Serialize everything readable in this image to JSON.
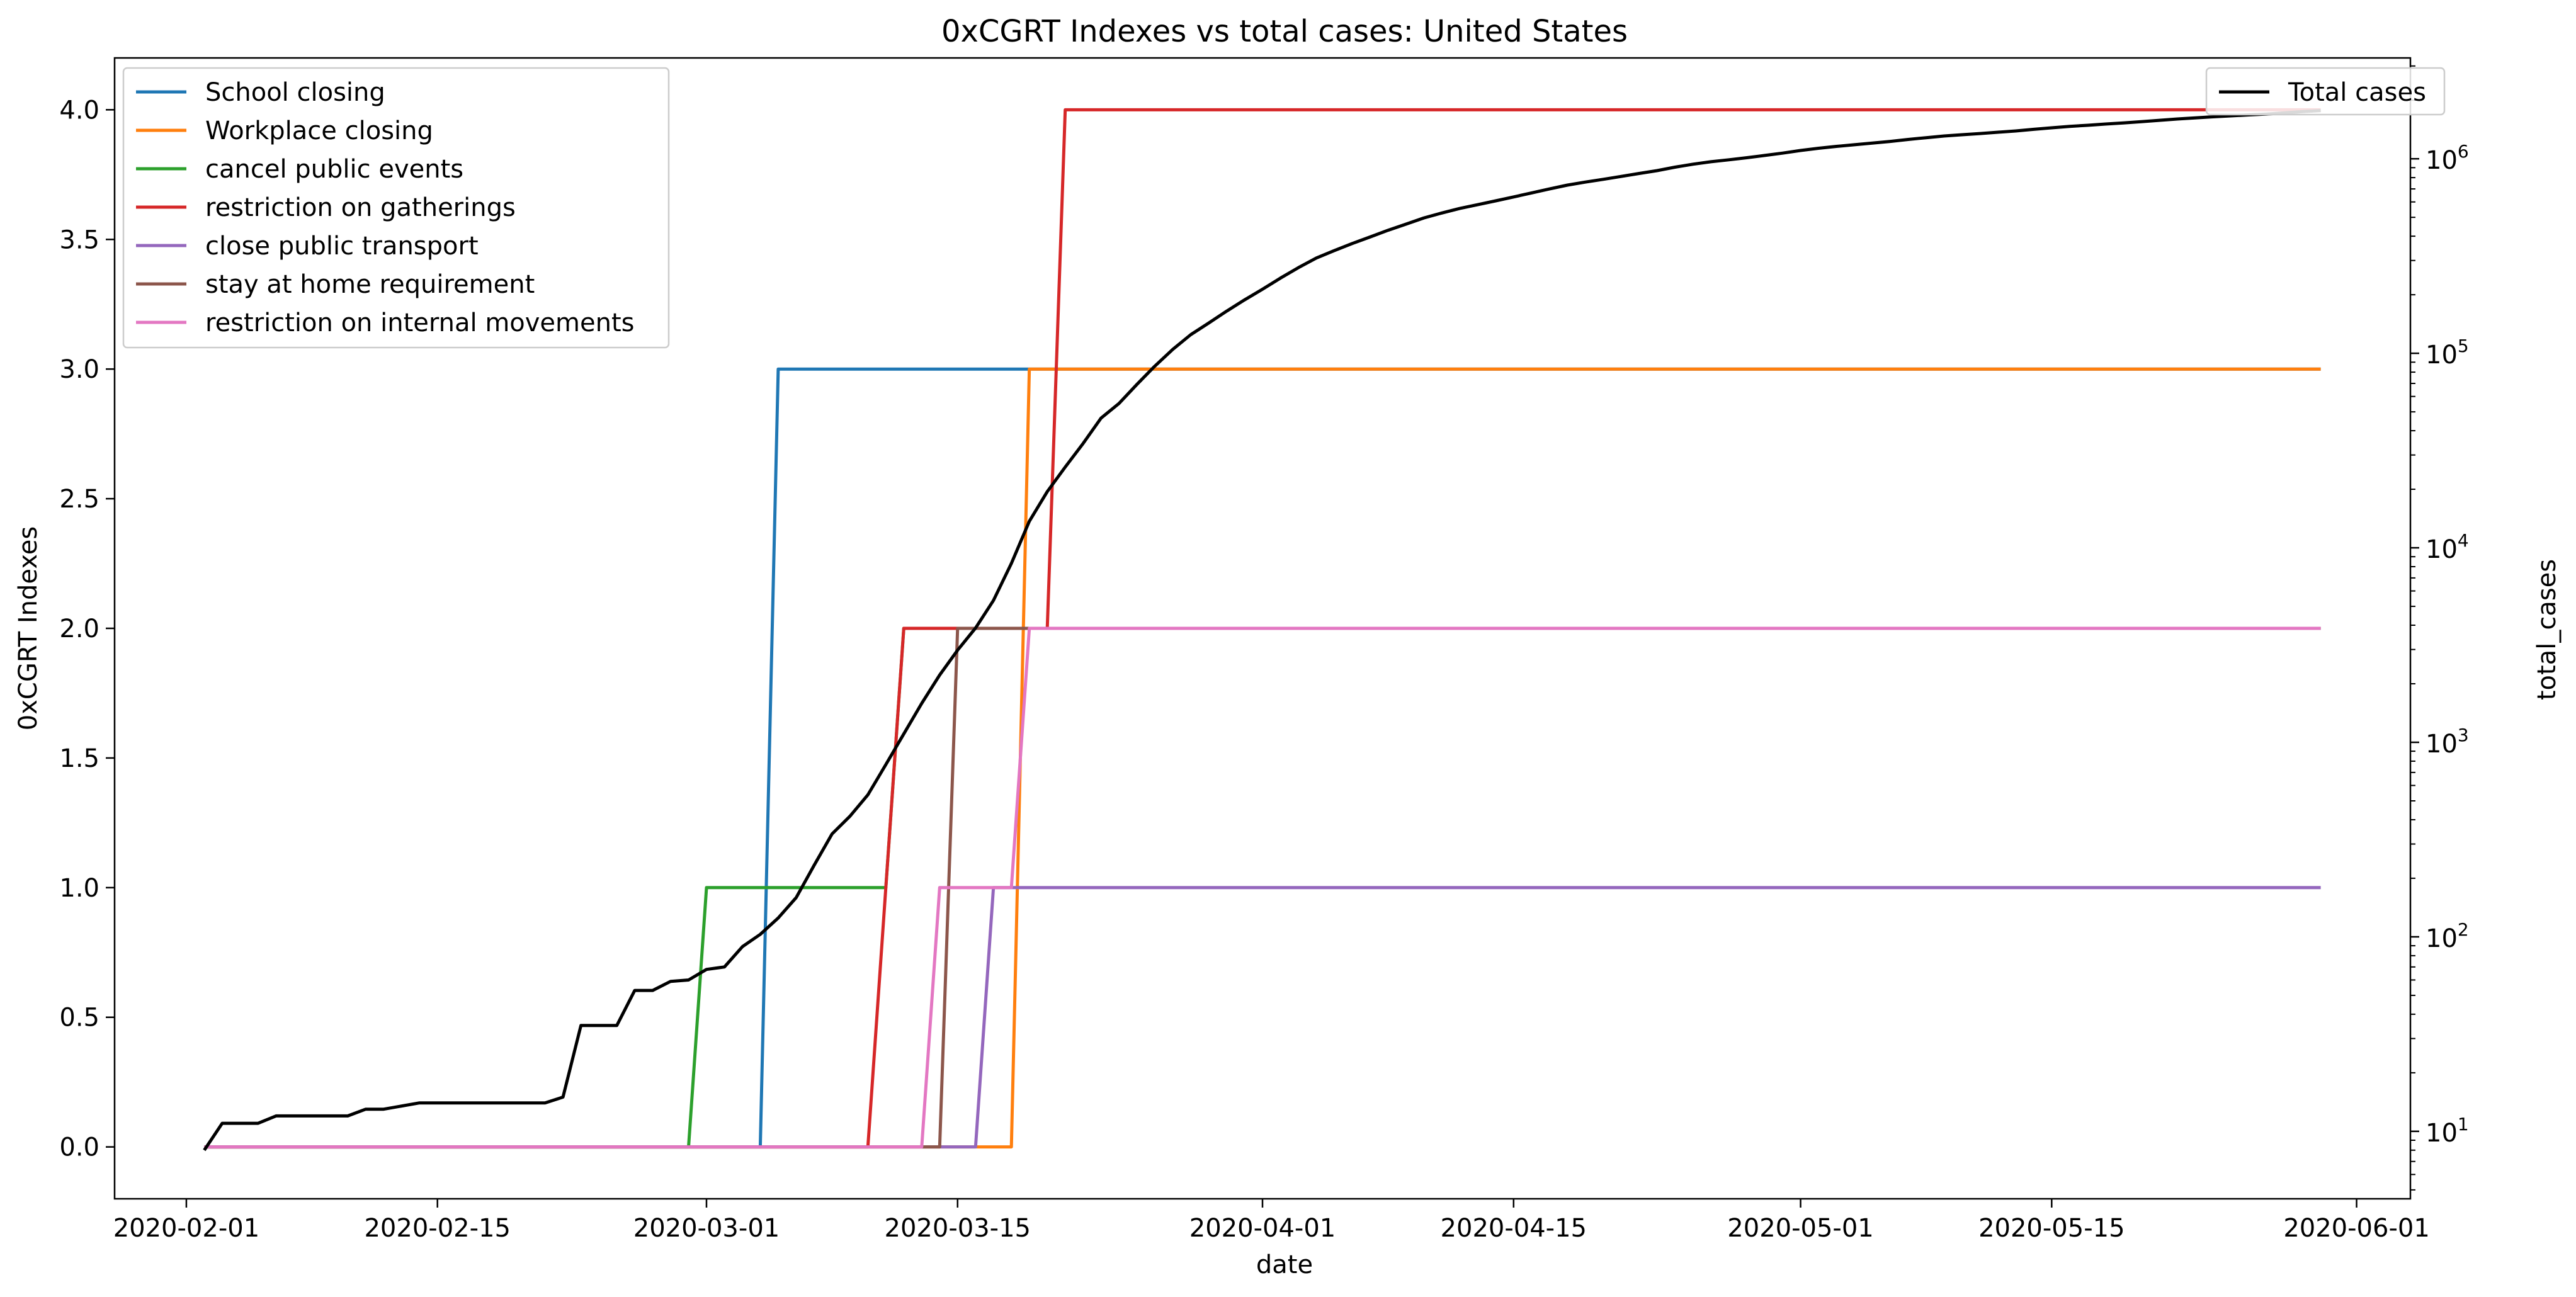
{
  "chart_data": {
    "type": "line",
    "title": "0xCGRT Indexes vs total cases:  United States",
    "xlabel": "date",
    "ylabel_left": "0xCGRT Indexes",
    "ylabel_right": "total_cases",
    "x_ticks": [
      "2020-02-01",
      "2020-02-15",
      "2020-03-01",
      "2020-03-15",
      "2020-04-01",
      "2020-04-15",
      "2020-05-01",
      "2020-05-15",
      "2020-06-01"
    ],
    "y_left_ticks": [
      "0.0",
      "0.5",
      "1.0",
      "1.5",
      "2.0",
      "2.5",
      "3.0",
      "3.5",
      "4.0"
    ],
    "y_right_ticks": [
      "10^1",
      "10^2",
      "10^3",
      "10^4",
      "10^5",
      "10^6"
    ],
    "y_left_range": [
      -0.2,
      4.2
    ],
    "y_right_scale": "log",
    "y_right_range": [
      4.5,
      3300000
    ],
    "x_range": [
      "2020-01-28",
      "2020-06-04"
    ],
    "legend_left_position": "top-left",
    "legend_right_position": "top-right",
    "index_series": [
      {
        "name": "School closing",
        "color": "#1f77b4",
        "points": [
          [
            "2020-02-02",
            0
          ],
          [
            "2020-03-04",
            0
          ],
          [
            "2020-03-05",
            3
          ],
          [
            "2020-03-18",
            3
          ],
          [
            "2020-03-19",
            3
          ],
          [
            "2020-05-30",
            3
          ]
        ]
      },
      {
        "name": "Workplace closing",
        "color": "#ff7f0e",
        "points": [
          [
            "2020-02-02",
            0
          ],
          [
            "2020-03-18",
            0
          ],
          [
            "2020-03-19",
            3
          ],
          [
            "2020-05-30",
            3
          ]
        ]
      },
      {
        "name": "cancel public events",
        "color": "#2ca02c",
        "points": [
          [
            "2020-02-02",
            0
          ],
          [
            "2020-02-29",
            0
          ],
          [
            "2020-03-01",
            1
          ],
          [
            "2020-03-11",
            1
          ],
          [
            "2020-03-12",
            2
          ],
          [
            "2020-05-30",
            2
          ]
        ]
      },
      {
        "name": "restriction on gatherings",
        "color": "#d62728",
        "points": [
          [
            "2020-02-02",
            0
          ],
          [
            "2020-03-10",
            0
          ],
          [
            "2020-03-12",
            2
          ],
          [
            "2020-03-20",
            2
          ],
          [
            "2020-03-21",
            4
          ],
          [
            "2020-05-30",
            4
          ]
        ]
      },
      {
        "name": "close public transport",
        "color": "#9467bd",
        "points": [
          [
            "2020-02-02",
            0
          ],
          [
            "2020-03-16",
            0
          ],
          [
            "2020-03-17",
            1
          ],
          [
            "2020-05-30",
            1
          ]
        ]
      },
      {
        "name": "stay at home requirement",
        "color": "#8c564b",
        "points": [
          [
            "2020-02-02",
            0
          ],
          [
            "2020-03-14",
            0
          ],
          [
            "2020-03-15",
            2
          ],
          [
            "2020-03-19",
            2
          ],
          [
            "2020-05-30",
            2
          ]
        ]
      },
      {
        "name": "restriction on internal movements",
        "color": "#e377c2",
        "points": [
          [
            "2020-02-02",
            0
          ],
          [
            "2020-03-13",
            0
          ],
          [
            "2020-03-14",
            1
          ],
          [
            "2020-03-18",
            1
          ],
          [
            "2020-03-19",
            2
          ],
          [
            "2020-05-30",
            2
          ]
        ]
      }
    ],
    "cases_series": {
      "name": "Total cases",
      "color": "#000000",
      "points": [
        [
          "2020-02-02",
          8
        ],
        [
          "2020-02-03",
          11
        ],
        [
          "2020-02-05",
          11
        ],
        [
          "2020-02-06",
          12
        ],
        [
          "2020-02-10",
          12
        ],
        [
          "2020-02-11",
          13
        ],
        [
          "2020-02-12",
          13
        ],
        [
          "2020-02-14",
          14
        ],
        [
          "2020-02-21",
          14
        ],
        [
          "2020-02-22",
          15
        ],
        [
          "2020-02-23",
          35
        ],
        [
          "2020-02-25",
          35
        ],
        [
          "2020-02-26",
          53
        ],
        [
          "2020-02-27",
          53
        ],
        [
          "2020-02-28",
          59
        ],
        [
          "2020-02-29",
          60
        ],
        [
          "2020-03-01",
          68
        ],
        [
          "2020-03-02",
          70
        ],
        [
          "2020-03-03",
          89
        ],
        [
          "2020-03-04",
          103
        ],
        [
          "2020-03-05",
          125
        ],
        [
          "2020-03-06",
          159
        ],
        [
          "2020-03-07",
          233
        ],
        [
          "2020-03-08",
          338
        ],
        [
          "2020-03-09",
          417
        ],
        [
          "2020-03-10",
          537
        ],
        [
          "2020-03-11",
          768
        ],
        [
          "2020-03-12",
          1104
        ],
        [
          "2020-03-13",
          1586
        ],
        [
          "2020-03-14",
          2219
        ],
        [
          "2020-03-15",
          2978
        ],
        [
          "2020-03-16",
          3867
        ],
        [
          "2020-03-17",
          5362
        ],
        [
          "2020-03-18",
          8317
        ],
        [
          "2020-03-19",
          13693
        ],
        [
          "2020-03-20",
          19446
        ],
        [
          "2020-03-21",
          26012
        ],
        [
          "2020-03-22",
          34426
        ],
        [
          "2020-03-23",
          46413
        ],
        [
          "2020-03-24",
          55231
        ],
        [
          "2020-03-25",
          69194
        ],
        [
          "2020-03-26",
          85996
        ],
        [
          "2020-03-27",
          104839
        ],
        [
          "2020-03-28",
          124665
        ],
        [
          "2020-03-29",
          143025
        ],
        [
          "2020-03-30",
          164620
        ],
        [
          "2020-03-31",
          188172
        ],
        [
          "2020-04-01",
          213372
        ],
        [
          "2020-04-02",
          243453
        ],
        [
          "2020-04-03",
          275586
        ],
        [
          "2020-04-04",
          308850
        ],
        [
          "2020-04-05",
          337072
        ],
        [
          "2020-04-06",
          366667
        ],
        [
          "2020-04-07",
          396223
        ],
        [
          "2020-04-08",
          429052
        ],
        [
          "2020-04-09",
          461437
        ],
        [
          "2020-04-10",
          496535
        ],
        [
          "2020-04-11",
          526396
        ],
        [
          "2020-04-12",
          555313
        ],
        [
          "2020-04-13",
          580619
        ],
        [
          "2020-04-14",
          607670
        ],
        [
          "2020-04-15",
          636350
        ],
        [
          "2020-04-16",
          667801
        ],
        [
          "2020-04-17",
          699706
        ],
        [
          "2020-04-18",
          732197
        ],
        [
          "2020-04-19",
          759086
        ],
        [
          "2020-04-20",
          784326
        ],
        [
          "2020-04-21",
          811865
        ],
        [
          "2020-04-22",
          840351
        ],
        [
          "2020-04-23",
          869170
        ],
        [
          "2020-04-24",
          905358
        ],
        [
          "2020-04-25",
          938154
        ],
        [
          "2020-04-26",
          965785
        ],
        [
          "2020-04-27",
          988197
        ],
        [
          "2020-04-28",
          1012582
        ],
        [
          "2020-04-29",
          1039909
        ],
        [
          "2020-04-30",
          1069424
        ],
        [
          "2020-05-01",
          1103461
        ],
        [
          "2020-05-02",
          1132539
        ],
        [
          "2020-05-03",
          1158040
        ],
        [
          "2020-05-04",
          1180375
        ],
        [
          "2020-05-05",
          1204351
        ],
        [
          "2020-05-06",
          1228603
        ],
        [
          "2020-05-07",
          1257023
        ],
        [
          "2020-05-08",
          1283929
        ],
        [
          "2020-05-09",
          1309550
        ],
        [
          "2020-05-10",
          1329260
        ],
        [
          "2020-05-11",
          1347881
        ],
        [
          "2020-05-12",
          1369376
        ],
        [
          "2020-05-13",
          1390406
        ],
        [
          "2020-05-14",
          1417774
        ],
        [
          "2020-05-15",
          1442824
        ],
        [
          "2020-05-16",
          1467820
        ],
        [
          "2020-05-17",
          1486757
        ],
        [
          "2020-05-18",
          1508308
        ],
        [
          "2020-05-19",
          1528568
        ],
        [
          "2020-05-20",
          1551853
        ],
        [
          "2020-05-21",
          1577147
        ],
        [
          "2020-05-22",
          1600937
        ],
        [
          "2020-05-23",
          1622612
        ],
        [
          "2020-05-24",
          1643246
        ],
        [
          "2020-05-25",
          1662302
        ],
        [
          "2020-05-26",
          1681418
        ],
        [
          "2020-05-27",
          1699176
        ],
        [
          "2020-05-28",
          1721750
        ],
        [
          "2020-05-29",
          1747781
        ],
        [
          "2020-05-30",
          1770384
        ]
      ]
    }
  }
}
